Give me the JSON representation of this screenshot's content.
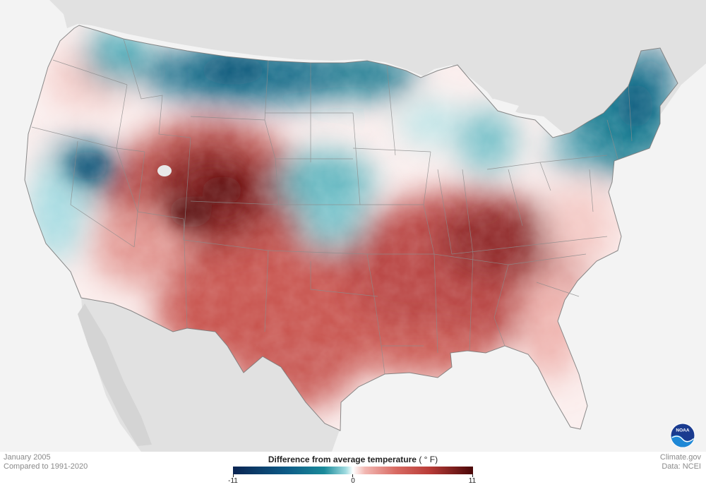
{
  "map": {
    "type": "choropleth-heatmap",
    "region": "Contiguous United States",
    "colors": {
      "ocean": "#f3f3f3",
      "neighbor_land": "#e1e1e1",
      "neighbor_dark": "#d4d4d4",
      "cold_strong": "#0d5a86",
      "cold_mid": "#1a8a9a",
      "cold_light": "#9fdbe0",
      "neutral": "#ffffff",
      "warm_light": "#f2b7b2",
      "warm_mid": "#c9524d",
      "warm_strong": "#5e0c0d",
      "state_borders": "#8c8c8c"
    }
  },
  "footer": {
    "period": "January 2005",
    "baseline": "Compared to 1991-2020",
    "source_site": "Climate.gov",
    "source_data": "Data: NCEI"
  },
  "legend": {
    "title": "Difference from average temperature",
    "unit": "( ° F)",
    "min_label": "-11",
    "mid_label": "0",
    "max_label": "11",
    "range": [
      -11,
      11
    ]
  },
  "logo": {
    "text": "NOAA",
    "icon": "noaa-logo-icon"
  }
}
